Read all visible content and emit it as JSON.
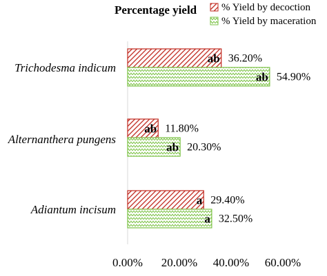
{
  "chart_data": {
    "type": "bar",
    "orientation": "horizontal",
    "title": "Percentage yield",
    "categories": [
      "Trichodesma indicum",
      "Alternanthera pungens",
      "Adiantum incisum"
    ],
    "series": [
      {
        "name": "% Yield by decoction",
        "values": [
          36.2,
          11.8,
          29.4
        ],
        "value_labels": [
          "36.20%",
          "11.80%",
          "29.40%"
        ],
        "letters": [
          "ab",
          "ab",
          "a"
        ],
        "color": "#c0281e",
        "pattern": "diagonal-hatch"
      },
      {
        "name": "% Yield by maceration",
        "values": [
          54.9,
          20.3,
          32.5
        ],
        "value_labels": [
          "54.90%",
          "20.30%",
          "32.50%"
        ],
        "letters": [
          "ab",
          "ab",
          "a"
        ],
        "color": "#7ac143",
        "pattern": "zigzag"
      }
    ],
    "xlim": [
      0,
      60
    ],
    "xticks": [
      0,
      20,
      40,
      60
    ],
    "xtick_labels": [
      "0.00%",
      "20.00%",
      "40.00%",
      "60.00%"
    ],
    "xlabel": "",
    "ylabel": "",
    "grid": false,
    "legend_position": "top-right"
  }
}
